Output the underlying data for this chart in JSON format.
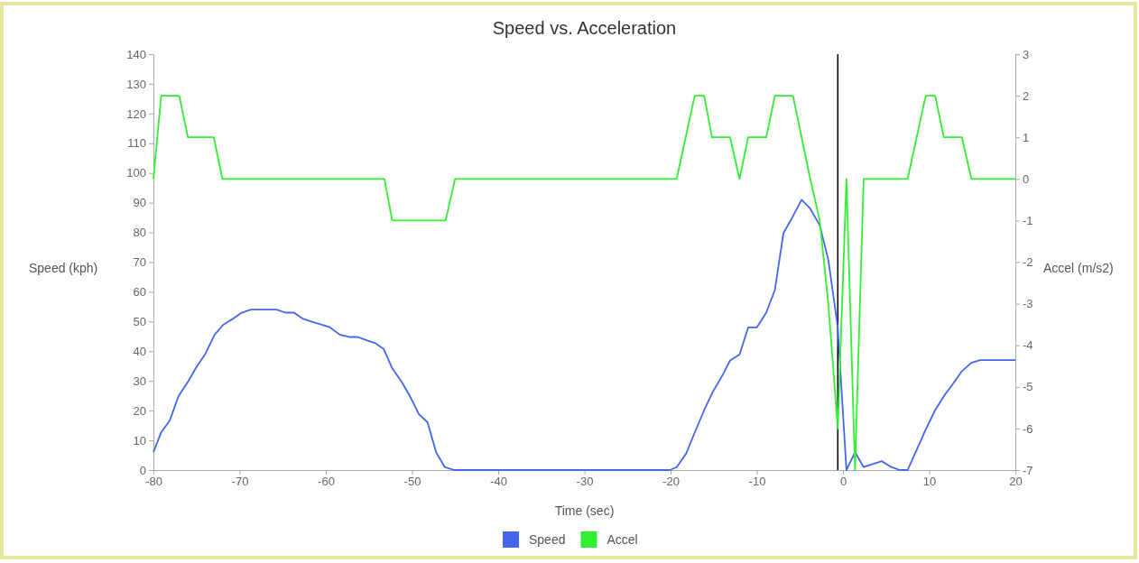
{
  "chart_data": {
    "type": "line",
    "title": "Speed vs. Acceleration",
    "xlabel": "Time (sec)",
    "ylabel": "Speed (kph)",
    "y2label": "Accel (m/s2)",
    "xlim": [
      -80,
      20
    ],
    "xticks": [
      -80,
      -70,
      -60,
      -50,
      -40,
      -30,
      -20,
      -10,
      0,
      10,
      20
    ],
    "ylim": [
      0,
      140
    ],
    "yticks": [
      0,
      10,
      20,
      30,
      40,
      50,
      60,
      70,
      80,
      90,
      100,
      110,
      120,
      130,
      140
    ],
    "y2lim": [
      -7,
      3
    ],
    "y2ticks": [
      -7,
      -6,
      -5,
      -4,
      -3,
      -2,
      -1,
      0,
      1,
      2,
      3
    ],
    "grid": false,
    "legend": "bottom",
    "marker": "none",
    "line_style": "solid",
    "ref_lines": [
      {
        "axis": "x",
        "value": -0.6,
        "color": "#000000"
      }
    ],
    "series": [
      {
        "name": "Speed",
        "color": "#4466ee",
        "x": [
          -80,
          -79.1,
          -78.1,
          -77.1,
          -76,
          -75,
          -74,
          -72.9,
          -71.9,
          -70.8,
          -69.8,
          -68.7,
          -65.7,
          -64.7,
          -63.7,
          -62.7,
          -61.7,
          -59.6,
          -58.4,
          -57.3,
          -56.3,
          -55.2,
          -54.2,
          -53.3,
          -52.3,
          -51.2,
          -50.3,
          -49.2,
          -48.2,
          -47.2,
          -46.2,
          -45.1,
          -20.1,
          -19.3,
          -18.2,
          -17.2,
          -16.1,
          -15.1,
          -14,
          -13.1,
          -12,
          -11,
          -10,
          -8.9,
          -7.9,
          -6.9,
          -5.9,
          -4.8,
          -3.8,
          -2.7,
          -1.7,
          -0.6,
          0.4,
          1.4,
          2.4,
          4.5,
          5.6,
          6.6,
          7.5,
          8.6,
          9.6,
          10.7,
          11.8,
          12.7,
          13.8,
          14.9,
          15.9,
          20
        ],
        "values": [
          6,
          12.7,
          16.7,
          24.8,
          29.7,
          34.7,
          39,
          45.6,
          48.9,
          50.9,
          52.9,
          54,
          54,
          53,
          53,
          51,
          50,
          48.2,
          45.6,
          44.8,
          44.8,
          43.6,
          42.6,
          40.8,
          34.3,
          29.7,
          25.2,
          18.8,
          16.1,
          6,
          1,
          0,
          0,
          1,
          5.5,
          12.6,
          20.2,
          26.3,
          31.8,
          36.9,
          38.9,
          48,
          48,
          53,
          60.6,
          79.8,
          84.9,
          91,
          88,
          82.4,
          70.8,
          48,
          0,
          6,
          1,
          3,
          1,
          0,
          0,
          7.1,
          13.6,
          20.2,
          25.3,
          28.8,
          33.3,
          36.1,
          37,
          37
        ]
      },
      {
        "name": "Accel",
        "color": "#33ee33",
        "axis": "y2",
        "x": [
          -80,
          -79.1,
          -77,
          -76,
          -73,
          -72,
          -53.2,
          -52.3,
          -46.1,
          -45,
          -19.3,
          -17.2,
          -16.1,
          -15.2,
          -13.1,
          -12,
          -11,
          -8.9,
          -7.9,
          -5.8,
          -4.8,
          -3.8,
          -2.7,
          -1.7,
          -0.6,
          0.4,
          1.4,
          2.4,
          7.5,
          9.6,
          10.7,
          11.7,
          13.8,
          14.9,
          20
        ],
        "values": [
          0,
          2,
          2,
          1,
          1,
          0,
          0,
          -1,
          -1,
          0,
          0,
          2,
          2,
          1,
          1,
          0,
          1,
          1,
          2,
          2,
          1,
          0,
          -1,
          -3,
          -6,
          0,
          -7,
          0,
          0,
          2,
          2,
          1,
          1,
          0,
          0
        ]
      }
    ]
  }
}
